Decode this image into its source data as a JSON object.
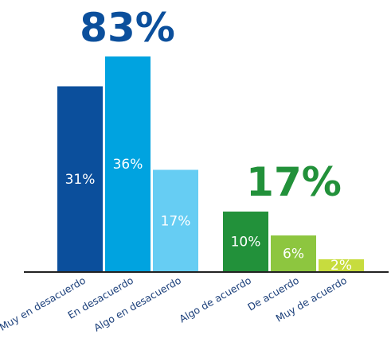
{
  "chart_data": {
    "type": "bar",
    "categories": [
      "Muy en desacuerdo",
      "En desacuerdo",
      "Algo en desacuerdo",
      "Algo de acuerdo",
      "De acuerdo",
      "Muy de acuerdo"
    ],
    "values": [
      31,
      36,
      17,
      10,
      6,
      2
    ],
    "value_labels": [
      "31%",
      "36%",
      "17%",
      "10%",
      "6%",
      "2%"
    ],
    "bar_colors": [
      "#0b4f9c",
      "#00a3e0",
      "#66cdf3",
      "#22913a",
      "#8dc63f",
      "#c7dc3e"
    ],
    "groups": [
      {
        "total_label": "83%",
        "color": "#0b4f9c"
      },
      {
        "total_label": "17%",
        "color": "#22913a"
      }
    ],
    "ylim": [
      0,
      36
    ],
    "grid": false,
    "title": "",
    "xlabel": "",
    "ylabel": ""
  }
}
